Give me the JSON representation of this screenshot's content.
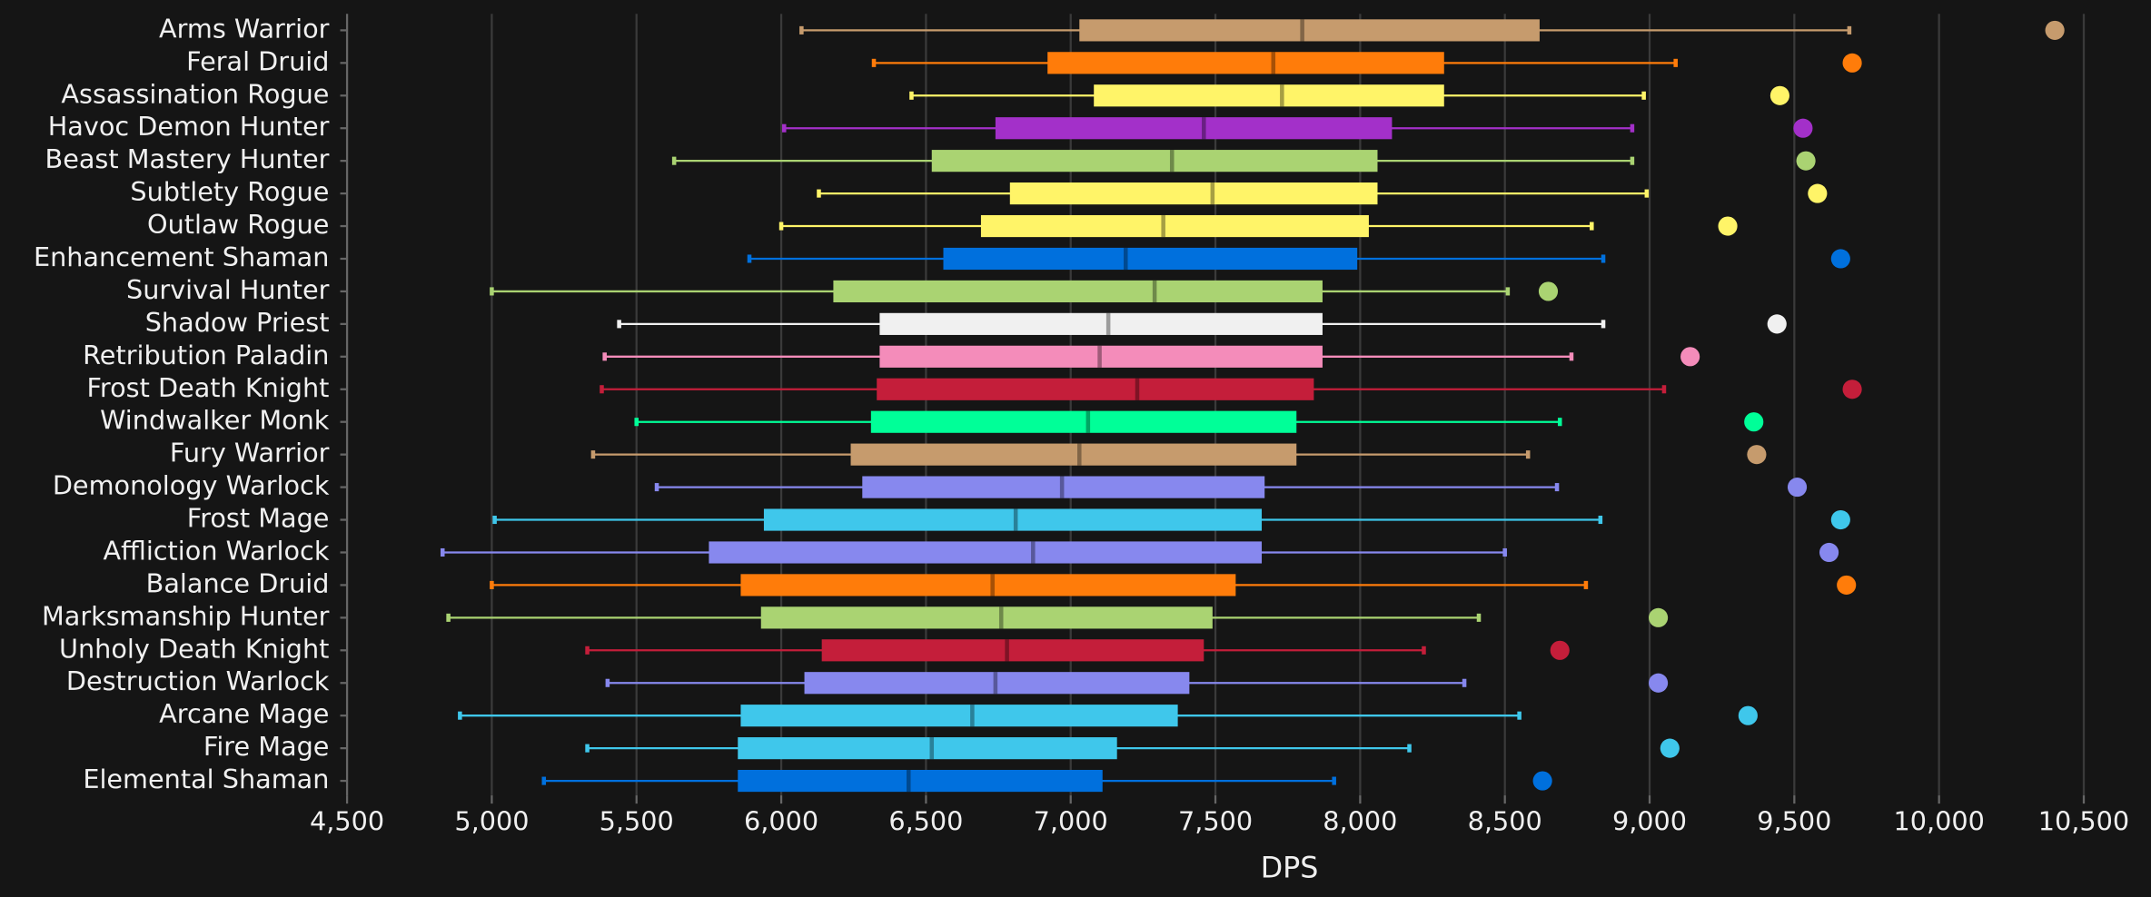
{
  "chart_data": {
    "type": "box",
    "x_label": "DPS",
    "categories": [
      "Arms Warrior",
      "Feral Druid",
      "Assassination Rogue",
      "Havoc Demon Hunter",
      "Beast Mastery Hunter",
      "Subtlety Rogue",
      "Outlaw Rogue",
      "Enhancement Shaman",
      "Survival Hunter",
      "Shadow Priest",
      "Retribution Paladin",
      "Frost Death Knight",
      "Windwalker Monk",
      "Fury Warrior",
      "Demonology Warlock",
      "Frost Mage",
      "Affliction Warlock",
      "Balance Druid",
      "Marksmanship Hunter",
      "Unholy Death Knight",
      "Destruction Warlock",
      "Arcane Mage",
      "Fire Mage",
      "Elemental Shaman"
    ],
    "colors": [
      "#c69b6d",
      "#ff7c0a",
      "#fff468",
      "#a330c9",
      "#aad372",
      "#fff468",
      "#fff468",
      "#0070dd",
      "#aad372",
      "#f0f0f0",
      "#f48cba",
      "#c41e3a",
      "#00ff98",
      "#c69b6d",
      "#8788ee",
      "#3fc7eb",
      "#8788ee",
      "#ff7c0a",
      "#aad372",
      "#c41e3a",
      "#8788ee",
      "#3fc7eb",
      "#3fc7eb",
      "#0070dd"
    ],
    "whisker_low": [
      6070,
      6320,
      6450,
      6010,
      5630,
      6130,
      6000,
      5890,
      5000,
      5440,
      5390,
      5380,
      5500,
      5350,
      5570,
      5010,
      4830,
      5000,
      4850,
      5330,
      5400,
      4890,
      5330,
      5180
    ],
    "q1": [
      7030,
      6920,
      7080,
      6740,
      6520,
      6790,
      6690,
      6560,
      6180,
      6340,
      6340,
      6330,
      6310,
      6240,
      6280,
      5940,
      5750,
      5860,
      5930,
      6140,
      6080,
      5860,
      5850,
      5850
    ],
    "median": [
      7800,
      7700,
      7730,
      7460,
      7350,
      7490,
      7320,
      7190,
      7290,
      7130,
      7100,
      7230,
      7060,
      7030,
      6970,
      6810,
      6870,
      6730,
      6760,
      6780,
      6740,
      6660,
      6520,
      6440
    ],
    "q3": [
      8620,
      8290,
      8290,
      8110,
      8060,
      8060,
      8030,
      7990,
      7870,
      7870,
      7870,
      7840,
      7780,
      7780,
      7670,
      7660,
      7660,
      7570,
      7490,
      7460,
      7410,
      7370,
      7160,
      7110
    ],
    "whisker_high": [
      9690,
      9090,
      8980,
      8940,
      8940,
      8990,
      8800,
      8840,
      8510,
      8840,
      8730,
      9050,
      8690,
      8580,
      8680,
      8830,
      8500,
      8780,
      8410,
      8220,
      8360,
      8550,
      8170,
      7910
    ],
    "outlier": [
      10400,
      9700,
      9450,
      9530,
      9540,
      9580,
      9270,
      9660,
      8650,
      9440,
      9140,
      9700,
      9360,
      9370,
      9510,
      9660,
      9620,
      9680,
      9030,
      8690,
      9030,
      9340,
      9070,
      8630
    ],
    "xlim": [
      4500,
      10500
    ],
    "xticks": [
      {
        "value": 4500,
        "label": "4,500"
      },
      {
        "value": 5000,
        "label": "5,000"
      },
      {
        "value": 5500,
        "label": "5,500"
      },
      {
        "value": 6000,
        "label": "6,000"
      },
      {
        "value": 6500,
        "label": "6,500"
      },
      {
        "value": 7000,
        "label": "7,000"
      },
      {
        "value": 7500,
        "label": "7,500"
      },
      {
        "value": 8000,
        "label": "8,000"
      },
      {
        "value": 8500,
        "label": "8,500"
      },
      {
        "value": 9000,
        "label": "9,000"
      },
      {
        "value": 9500,
        "label": "9,500"
      },
      {
        "value": 10000,
        "label": "10,000"
      },
      {
        "value": 10500,
        "label": "10,500"
      }
    ],
    "grid": true
  }
}
